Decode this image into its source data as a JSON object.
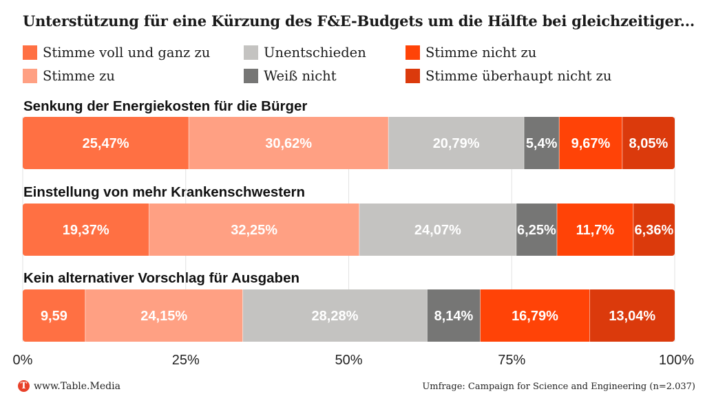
{
  "chart_data": {
    "type": "bar",
    "orientation": "horizontal",
    "stacked": true,
    "title": "Unterstützung für eine Kürzung des F&E-Budgets um die Hälfte bei gleichzeitiger...",
    "legend_position": "top",
    "grid": true,
    "xlim": [
      0,
      100
    ],
    "x_ticks": [
      "0%",
      "25%",
      "50%",
      "75%",
      "100%"
    ],
    "categories": [
      "Senkung der Energiekosten für die Bürger",
      "Einstellung von mehr Krankenschwestern",
      "Kein alternativer Vorschlag für Ausgaben"
    ],
    "series": [
      {
        "name": "Stimme voll und ganz zu",
        "color": "#ff7043",
        "values": [
          25.47,
          19.37,
          9.59
        ],
        "labels": [
          "25,47%",
          "19,37%",
          "9,59"
        ]
      },
      {
        "name": "Stimme zu",
        "color": "#ffa083",
        "values": [
          30.62,
          32.25,
          24.15
        ],
        "labels": [
          "30,62%",
          "32,25%",
          "24,15%"
        ]
      },
      {
        "name": "Unentschieden",
        "color": "#c4c3c1",
        "values": [
          20.79,
          24.07,
          28.28
        ],
        "labels": [
          "20,79%",
          "24,07%",
          "28,28%"
        ]
      },
      {
        "name": "Weiß nicht",
        "color": "#767675",
        "values": [
          5.4,
          6.25,
          8.14
        ],
        "labels": [
          "5,4%",
          "6,25%",
          "8,14%"
        ]
      },
      {
        "name": "Stimme nicht zu",
        "color": "#ff4307",
        "values": [
          9.67,
          11.7,
          16.79
        ],
        "labels": [
          "9,67%",
          "11,7%",
          "16,79%"
        ]
      },
      {
        "name": "Stimme überhaupt nicht zu",
        "color": "#db3a0c",
        "values": [
          8.05,
          6.36,
          13.04
        ],
        "labels": [
          "8,05%",
          "6,36%",
          "13,04%"
        ]
      }
    ]
  },
  "footer": {
    "brand_logo": "T",
    "brand": "www.Table.Media",
    "source": "Umfrage: Campaign for Science and Engineering  (n=2.037)"
  }
}
